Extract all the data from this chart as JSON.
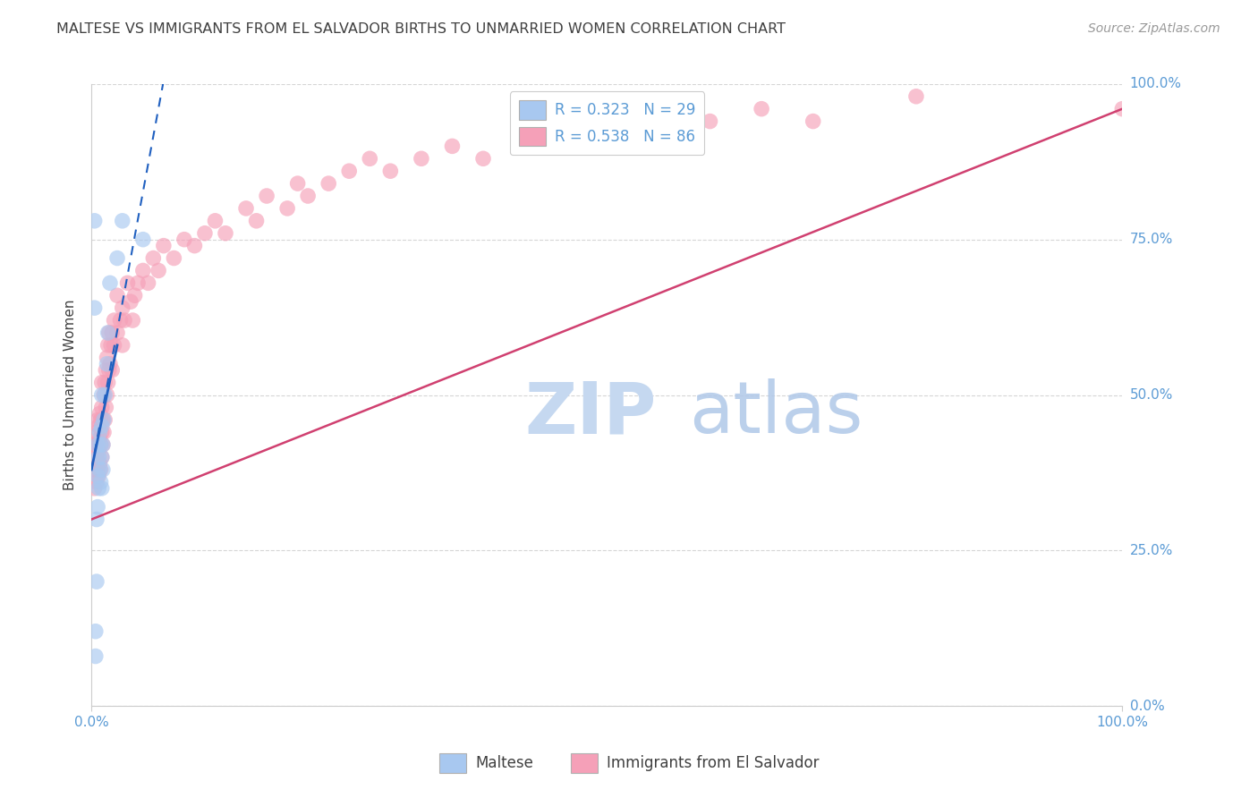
{
  "title": "MALTESE VS IMMIGRANTS FROM EL SALVADOR BIRTHS TO UNMARRIED WOMEN CORRELATION CHART",
  "source": "Source: ZipAtlas.com",
  "ylabel": "Births to Unmarried Women",
  "legend_r_maltese": "R = 0.323",
  "legend_n_maltese": "N = 29",
  "legend_r_salvador": "R = 0.538",
  "legend_n_salvador": "N = 86",
  "legend_label_maltese": "Maltese",
  "legend_label_salvador": "Immigrants from El Salvador",
  "maltese_color": "#a8c8f0",
  "salvador_color": "#f5a0b8",
  "line_maltese_color": "#2060c0",
  "line_salvador_color": "#d04070",
  "background_color": "#ffffff",
  "grid_color": "#cccccc",
  "title_color": "#404040",
  "axis_label_color": "#5b9bd5",
  "watermark_color_zip": "#c8d8ee",
  "watermark_color_atlas": "#b8c8e0",
  "ytick_labels": [
    "0.0%",
    "25.0%",
    "50.0%",
    "75.0%",
    "100.0%"
  ],
  "ytick_values": [
    0.0,
    0.25,
    0.5,
    0.75,
    1.0
  ],
  "xtick_labels": [
    "0.0%",
    "100.0%"
  ],
  "maltese_x": [
    0.003,
    0.003,
    0.004,
    0.004,
    0.005,
    0.005,
    0.006,
    0.006,
    0.006,
    0.007,
    0.007,
    0.008,
    0.008,
    0.009,
    0.009,
    0.01,
    0.01,
    0.01,
    0.01,
    0.011,
    0.011,
    0.012,
    0.013,
    0.015,
    0.016,
    0.018,
    0.025,
    0.03,
    0.05
  ],
  "maltese_y": [
    0.78,
    0.64,
    0.08,
    0.12,
    0.3,
    0.2,
    0.32,
    0.37,
    0.42,
    0.35,
    0.4,
    0.38,
    0.44,
    0.36,
    0.42,
    0.35,
    0.4,
    0.45,
    0.5,
    0.38,
    0.42,
    0.46,
    0.5,
    0.55,
    0.6,
    0.68,
    0.72,
    0.78,
    0.75
  ],
  "salvador_x": [
    0.003,
    0.004,
    0.004,
    0.005,
    0.005,
    0.005,
    0.006,
    0.006,
    0.006,
    0.007,
    0.007,
    0.007,
    0.008,
    0.008,
    0.008,
    0.009,
    0.009,
    0.009,
    0.01,
    0.01,
    0.01,
    0.01,
    0.011,
    0.011,
    0.012,
    0.012,
    0.013,
    0.013,
    0.014,
    0.014,
    0.015,
    0.015,
    0.016,
    0.016,
    0.017,
    0.017,
    0.018,
    0.019,
    0.02,
    0.02,
    0.022,
    0.022,
    0.025,
    0.025,
    0.028,
    0.03,
    0.03,
    0.032,
    0.035,
    0.038,
    0.04,
    0.042,
    0.045,
    0.05,
    0.055,
    0.06,
    0.065,
    0.07,
    0.08,
    0.09,
    0.1,
    0.11,
    0.12,
    0.13,
    0.15,
    0.16,
    0.17,
    0.19,
    0.2,
    0.21,
    0.23,
    0.25,
    0.27,
    0.29,
    0.32,
    0.35,
    0.38,
    0.42,
    0.46,
    0.5,
    0.55,
    0.6,
    0.65,
    0.7,
    0.8,
    1.0
  ],
  "salvador_y": [
    0.35,
    0.38,
    0.42,
    0.36,
    0.4,
    0.44,
    0.38,
    0.42,
    0.46,
    0.37,
    0.41,
    0.45,
    0.39,
    0.43,
    0.47,
    0.38,
    0.42,
    0.46,
    0.4,
    0.44,
    0.48,
    0.52,
    0.42,
    0.46,
    0.44,
    0.5,
    0.46,
    0.52,
    0.48,
    0.54,
    0.5,
    0.56,
    0.52,
    0.58,
    0.54,
    0.6,
    0.55,
    0.58,
    0.54,
    0.6,
    0.58,
    0.62,
    0.6,
    0.66,
    0.62,
    0.64,
    0.58,
    0.62,
    0.68,
    0.65,
    0.62,
    0.66,
    0.68,
    0.7,
    0.68,
    0.72,
    0.7,
    0.74,
    0.72,
    0.75,
    0.74,
    0.76,
    0.78,
    0.76,
    0.8,
    0.78,
    0.82,
    0.8,
    0.84,
    0.82,
    0.84,
    0.86,
    0.88,
    0.86,
    0.88,
    0.9,
    0.88,
    0.9,
    0.92,
    0.94,
    0.92,
    0.94,
    0.96,
    0.94,
    0.98,
    0.96
  ],
  "sal_line": [
    0.0,
    1.0,
    0.3,
    0.96
  ],
  "malt_line_solid": [
    0.0,
    0.025,
    0.38,
    0.58
  ],
  "malt_line_dash": [
    0.0,
    0.075,
    0.38,
    1.05
  ]
}
